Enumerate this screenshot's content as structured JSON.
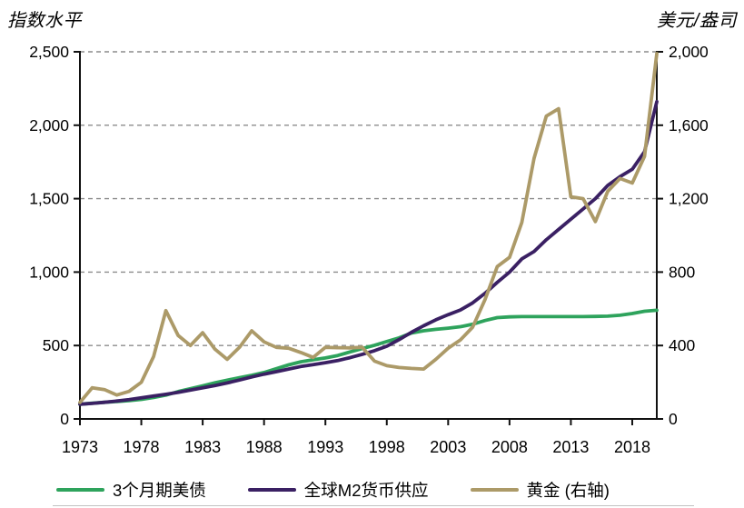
{
  "chart_data": {
    "type": "line",
    "x_range": [
      1973,
      2020
    ],
    "x": [
      1973,
      1974,
      1975,
      1976,
      1977,
      1978,
      1979,
      1980,
      1981,
      1982,
      1983,
      1984,
      1985,
      1986,
      1987,
      1988,
      1989,
      1990,
      1991,
      1992,
      1993,
      1994,
      1995,
      1996,
      1997,
      1998,
      1999,
      2000,
      2001,
      2002,
      2003,
      2004,
      2005,
      2006,
      2007,
      2008,
      2009,
      2010,
      2011,
      2012,
      2013,
      2014,
      2015,
      2016,
      2017,
      2018,
      2019,
      2020
    ],
    "series": [
      {
        "name": "3个月期美债",
        "axis": "left",
        "color": "#2EA35C",
        "values": [
          100,
          107,
          113,
          119,
          125,
          133,
          146,
          162,
          186,
          206,
          225,
          246,
          264,
          281,
          297,
          316,
          342,
          368,
          389,
          403,
          415,
          432,
          456,
          479,
          502,
          527,
          552,
          585,
          600,
          610,
          618,
          628,
          645,
          670,
          690,
          695,
          697,
          697,
          697,
          697,
          697,
          697,
          698,
          700,
          706,
          718,
          733,
          740
        ]
      },
      {
        "name": "全球M2货币供应",
        "axis": "left",
        "color": "#3A2063",
        "values": [
          100,
          106,
          113,
          122,
          132,
          144,
          156,
          168,
          181,
          196,
          212,
          228,
          245,
          265,
          286,
          305,
          322,
          340,
          357,
          370,
          383,
          397,
          417,
          440,
          465,
          495,
          540,
          590,
          634,
          675,
          710,
          742,
          790,
          855,
          930,
          1000,
          1090,
          1140,
          1220,
          1290,
          1360,
          1430,
          1500,
          1590,
          1650,
          1700,
          1820,
          2160
        ]
      },
      {
        "name": "黄金 (右轴)",
        "axis": "right",
        "color": "#AC9A68",
        "values": [
          90,
          170,
          160,
          130,
          150,
          200,
          340,
          590,
          455,
          400,
          470,
          380,
          325,
          390,
          480,
          420,
          390,
          385,
          362,
          335,
          390,
          388,
          387,
          390,
          315,
          290,
          280,
          275,
          272,
          325,
          385,
          430,
          500,
          650,
          830,
          880,
          1070,
          1420,
          1650,
          1690,
          1210,
          1200,
          1075,
          1240,
          1310,
          1285,
          1430,
          1990
        ]
      }
    ],
    "left_axis": {
      "title": "指数水平",
      "range": [
        0,
        2500
      ],
      "ticks": [
        {
          "label": "0",
          "value": 0
        },
        {
          "label": "500",
          "value": 500
        },
        {
          "label": "1,000",
          "value": 1000
        },
        {
          "label": "1,500",
          "value": 1500
        },
        {
          "label": "2,000",
          "value": 2000
        },
        {
          "label": "2,500",
          "value": 2500
        }
      ]
    },
    "right_axis": {
      "title": "美元/盎司",
      "range": [
        0,
        2000
      ],
      "ticks": [
        {
          "label": "0",
          "value": 0
        },
        {
          "label": "400",
          "value": 400
        },
        {
          "label": "800",
          "value": 800
        },
        {
          "label": "1,200",
          "value": 1200
        },
        {
          "label": "1,600",
          "value": 1600
        },
        {
          "label": "2,000",
          "value": 2000
        }
      ]
    },
    "x_ticks": [
      {
        "label": "1973",
        "value": 1973
      },
      {
        "label": "1978",
        "value": 1978
      },
      {
        "label": "1983",
        "value": 1983
      },
      {
        "label": "1988",
        "value": 1988
      },
      {
        "label": "1993",
        "value": 1993
      },
      {
        "label": "1998",
        "value": 1998
      },
      {
        "label": "2003",
        "value": 2003
      },
      {
        "label": "2008",
        "value": 2008
      },
      {
        "label": "2013",
        "value": 2013
      },
      {
        "label": "2018",
        "value": 2018
      }
    ],
    "grid": "horizontal-dashed",
    "legend_position": "bottom"
  }
}
